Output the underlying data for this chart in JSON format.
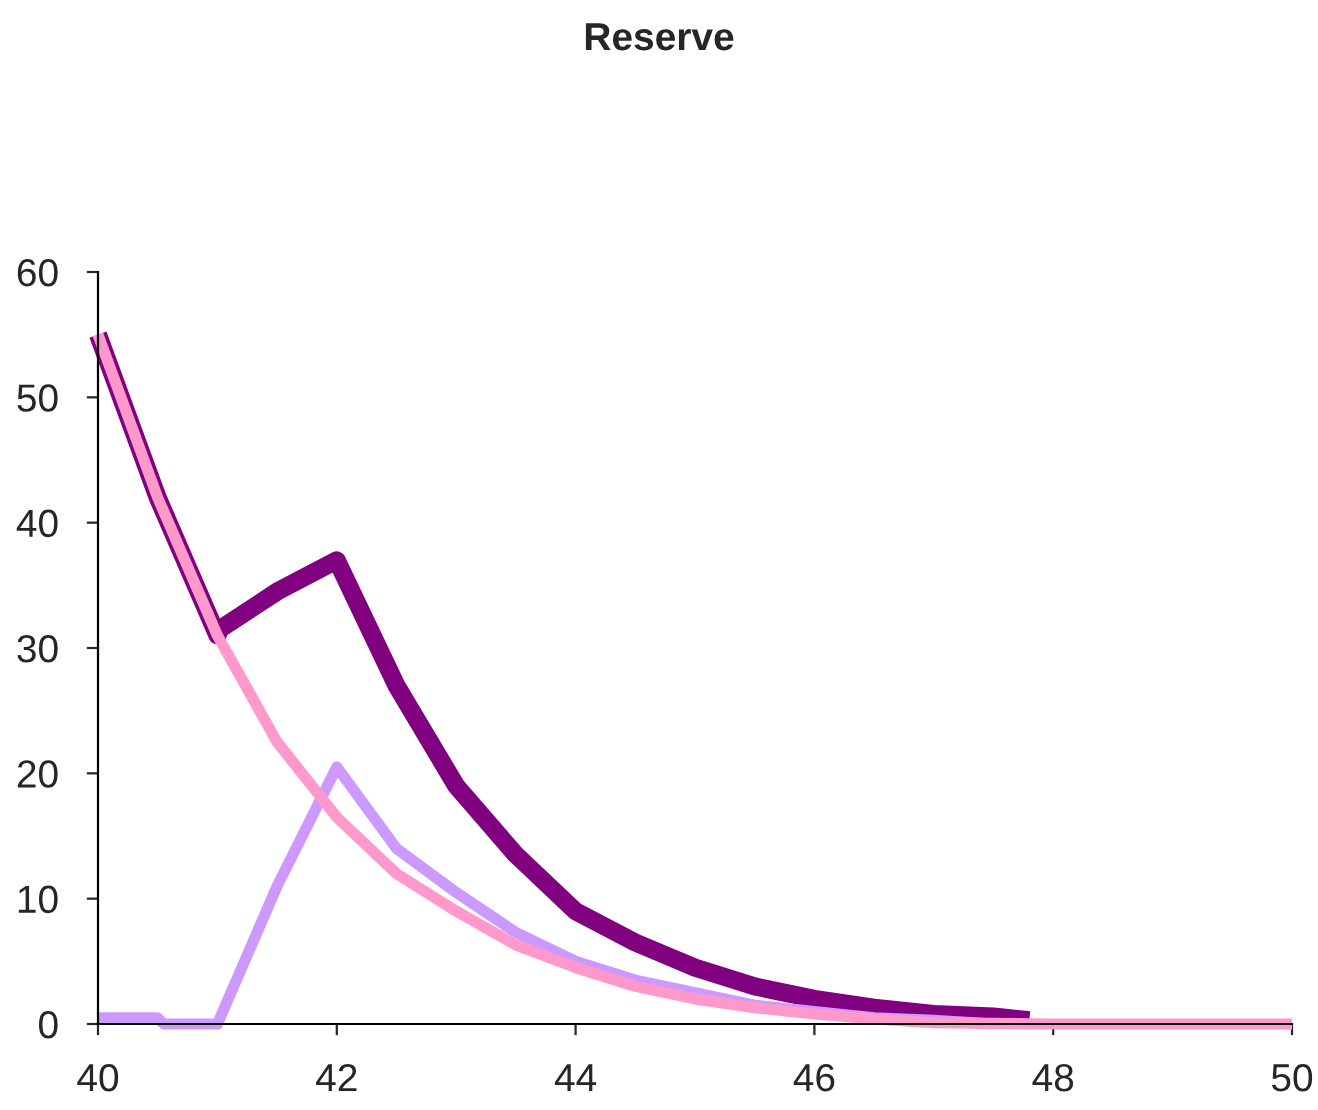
{
  "chart_data": {
    "type": "line",
    "title": "Reserve",
    "xlim": [
      40,
      50
    ],
    "xticks": [
      40,
      42,
      44,
      46,
      48,
      50
    ],
    "ylim": [
      0,
      60
    ],
    "yticks": [
      0,
      10,
      20,
      30,
      40,
      50,
      60
    ],
    "grid": false,
    "legend": false,
    "marker": "none",
    "line_style": "solid",
    "series": [
      {
        "color": "#800080",
        "x": [
          40,
          40.5,
          41,
          41.02,
          41.5,
          42,
          42.5,
          43,
          43.5,
          44,
          44.5,
          45,
          45.5,
          46,
          46.5,
          47,
          47.5,
          47.8
        ],
        "values": [
          55,
          42,
          31,
          31.5,
          34.5,
          37,
          27,
          19,
          13.5,
          9,
          6.5,
          4.5,
          3,
          2,
          1.3,
          0.8,
          0.6,
          0.3
        ]
      },
      {
        "color": "#cc99ff",
        "x": [
          40,
          40.5,
          40.55,
          41,
          41.5,
          42,
          42.5,
          43,
          43.5,
          44,
          44.5,
          45,
          45.5,
          46,
          46.5,
          47,
          47.5
        ],
        "values": [
          0.5,
          0.5,
          0,
          0,
          11,
          20.5,
          14,
          10.5,
          7.3,
          5,
          3.5,
          2.5,
          1.5,
          1,
          0.5,
          0.3,
          0
        ]
      },
      {
        "color": "#ff99cc",
        "x": [
          40,
          40.5,
          41,
          41.5,
          42,
          42.5,
          43,
          43.5,
          44,
          44.5,
          45,
          45.5,
          46,
          46.5,
          47,
          48,
          50
        ],
        "values": [
          55,
          42,
          31,
          22.5,
          16.5,
          12,
          9,
          6.3,
          4.5,
          3,
          2,
          1.3,
          0.8,
          0.4,
          0.1,
          0,
          0
        ]
      }
    ]
  }
}
